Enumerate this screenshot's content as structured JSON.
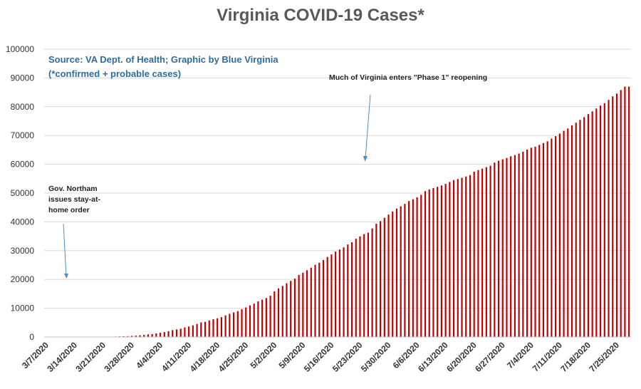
{
  "chart_data": {
    "type": "bar",
    "title": "Virginia COVID-19 Cases*",
    "source_line1": "Source: VA Dept. of Health; Graphic by Blue Virginia",
    "source_line2": "(*confirmed + probable cases)",
    "ylim": [
      0,
      100000
    ],
    "yticks": [
      0,
      10000,
      20000,
      30000,
      40000,
      50000,
      60000,
      70000,
      80000,
      90000,
      100000
    ],
    "grid": true,
    "bar_color": "#c00000",
    "gridline_color": "#d9d9d9",
    "x_tick_labels": [
      "3/7/2020",
      "3/14/2020",
      "3/21/2020",
      "3/28/2020",
      "4/4/2020",
      "4/11/2020",
      "4/18/2020",
      "4/25/2020",
      "5/2/2020",
      "5/9/2020",
      "5/16/2020",
      "5/23/2020",
      "5/30/2020",
      "6/6/2020",
      "6/13/2020",
      "6/20/2020",
      "6/27/2020",
      "7/4/2020",
      "7/11/2020",
      "7/18/2020",
      "7/25/2020"
    ],
    "start_date": "3/7/2020",
    "annotations": [
      {
        "lines": [
          "Gov. Northam",
          "issues stay-at-",
          "home order"
        ],
        "date": "3/30/2020"
      },
      {
        "lines": [
          "Much of Virginia enters \"Phase 1\" reopening"
        ],
        "date": "5/15/2020"
      }
    ],
    "values": [
      0,
      0,
      0,
      0,
      0,
      0,
      0,
      0,
      0,
      0,
      0,
      0,
      0,
      0,
      0,
      0,
      0,
      0,
      0,
      0,
      0,
      0,
      0,
      0,
      0,
      0,
      0,
      0,
      0,
      0,
      0,
      0,
      0,
      0,
      0,
      0,
      0,
      0,
      0,
      0,
      0,
      0,
      0,
      0,
      0,
      0,
      0,
      0,
      0,
      0,
      0,
      0,
      0,
      0,
      0,
      0,
      0,
      0,
      0,
      0,
      0,
      0,
      0,
      0,
      0,
      0,
      0,
      0,
      0,
      0,
      0,
      0,
      0,
      0,
      0,
      0,
      0,
      0,
      0,
      0,
      0,
      0,
      0,
      0,
      0,
      0,
      0,
      0,
      0,
      0,
      0,
      0,
      0,
      0,
      0,
      0,
      0,
      0,
      0,
      0,
      0,
      0,
      0,
      0,
      0,
      0,
      0,
      0,
      0,
      0,
      0,
      0,
      0,
      0,
      0,
      0,
      0,
      0,
      0,
      0,
      0,
      0,
      0,
      0,
      0,
      0,
      0,
      0,
      0,
      0,
      0,
      0,
      0,
      0,
      0,
      0,
      0,
      0,
      0,
      0,
      0,
      0,
      0,
      0,
      0
    ]
  }
}
